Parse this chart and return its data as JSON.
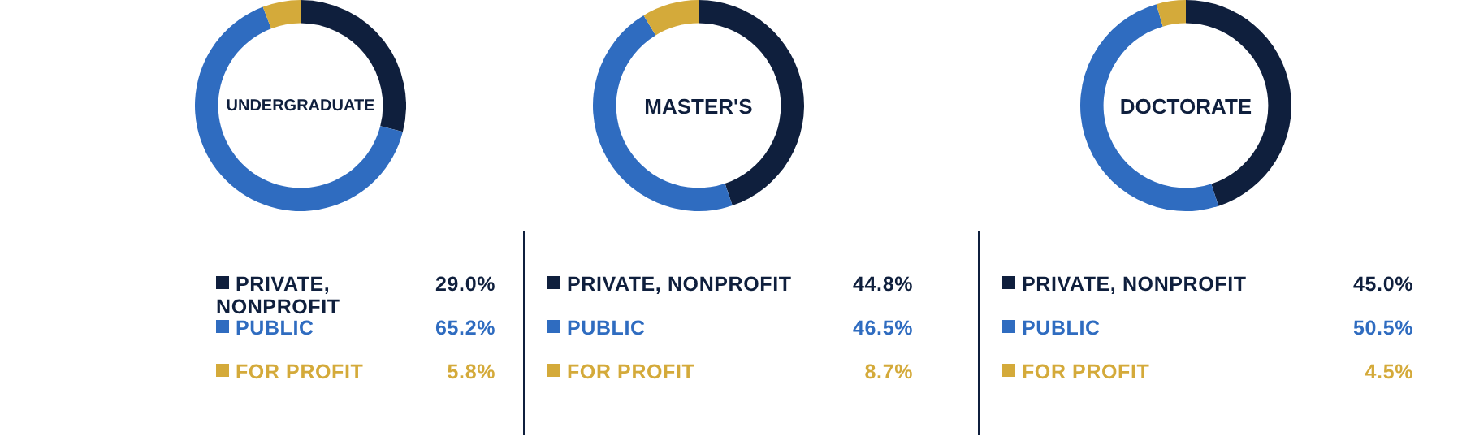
{
  "chart_data": [
    {
      "type": "donut",
      "title": "UNDERGRADUATE",
      "categories": [
        "PRIVATE, NONPROFIT",
        "PUBLIC",
        "FOR PROFIT"
      ],
      "values": [
        29.0,
        65.2,
        5.8
      ],
      "value_labels": [
        "29.0%",
        "65.2%",
        "5.8%"
      ],
      "colors": [
        "#0f1f3d",
        "#2f6cc0",
        "#d4aa3a"
      ],
      "legend": "bottom"
    },
    {
      "type": "donut",
      "title": "MASTER'S",
      "categories": [
        "PRIVATE, NONPROFIT",
        "PUBLIC",
        "FOR PROFIT"
      ],
      "values": [
        44.8,
        46.5,
        8.7
      ],
      "value_labels": [
        "44.8%",
        "46.5%",
        "8.7%"
      ],
      "colors": [
        "#0f1f3d",
        "#2f6cc0",
        "#d4aa3a"
      ],
      "legend": "bottom"
    },
    {
      "type": "donut",
      "title": "DOCTORATE",
      "categories": [
        "PRIVATE, NONPROFIT",
        "PUBLIC",
        "FOR PROFIT"
      ],
      "values": [
        45.0,
        50.5,
        4.5
      ],
      "value_labels": [
        "45.0%",
        "50.5%",
        "4.5%"
      ],
      "colors": [
        "#0f1f3d",
        "#2f6cc0",
        "#d4aa3a"
      ],
      "legend": "bottom"
    }
  ]
}
